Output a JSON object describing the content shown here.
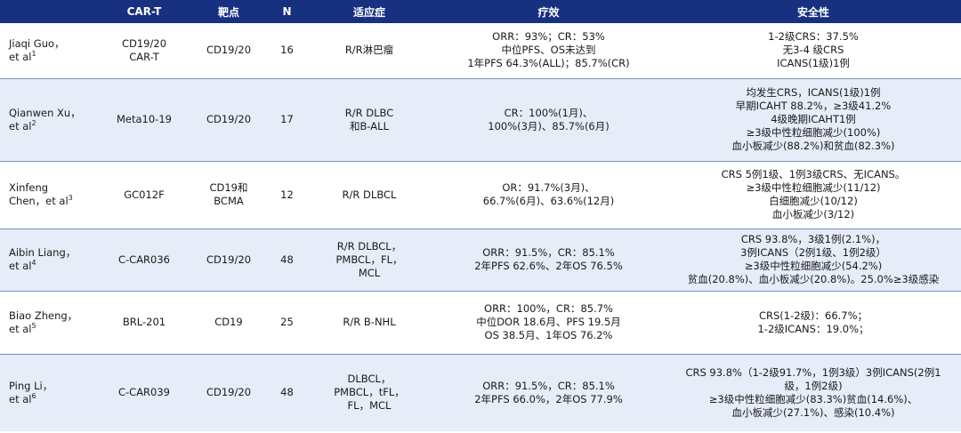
{
  "headers": [
    "",
    "CAR-T",
    "靶点",
    "N",
    "适应症",
    "疗效",
    "安全性"
  ],
  "rows": [
    {
      "author": "Jiaqi Guo，\net al",
      "ref": "1",
      "cart": "CD19/20\nCAR-T",
      "target": "CD19/20",
      "n": "16",
      "indication": "R/R淋巴瘤",
      "efficacy": "ORR：93%；CR：53%\n中位PFS、OS未达到\n1年PFS 64.3%(ALL)；85.7%(CR)",
      "safety": "1-2级CRS：37.5%\n无3-4 级CRS\nICANS(1级)1例"
    },
    {
      "author": "Qianwen Xu，\net al",
      "ref": "2",
      "cart": "Meta10-19",
      "target": "CD19/20",
      "n": "17",
      "indication": "R/R DLBC\n和B-ALL",
      "efficacy": "CR：100%(1月)、\n100%(3月)、85.7%(6月)",
      "safety": "均发生CRS，ICANS(1级)1例\n早期ICAHT 88.2%，≥3级41.2%\n4级晚期ICAHT1例\n≥3级中性粒细胞减少(100%)\n血小板减少(88.2%)和贫血(82.3%)"
    },
    {
      "author": "Xinfeng\nChen，et al",
      "ref": "3",
      "cart": "GC012F",
      "target": "CD19和\nBCMA",
      "n": "12",
      "indication": "R/R DLBCL",
      "efficacy": "OR：91.7%(3月)、\n66.7%(6月)、63.6%(12月)",
      "safety": "CRS 5例1级、1例3级CRS、无ICANS。\n≥3级中性粒细胞减少(11/12)\n白细胞减少(10/12)\n血小板减少(3/12)"
    },
    {
      "author": "Aibin Liang，\net al",
      "ref": "4",
      "cart": "C-CAR036",
      "target": "CD19/20",
      "n": "48",
      "indication": "R/R DLBCL，\nPMBCL，FL，\nMCL",
      "efficacy": "ORR：91.5%，CR：85.1%\n2年PFS 62.6%、2年OS 76.5%",
      "safety": "CRS 93.8%，3级1例(2.1%)，\n3例ICANS（2例1级、1例2级）\n≥3级中性粒细胞减少(54.2%)\n贫血(20.8%)、血小板减少(20.8%)。25.0%≥3级感染"
    },
    {
      "author": "Biao Zheng，\net al",
      "ref": "5",
      "cart": "BRL-201",
      "target": "CD19",
      "n": "25",
      "indication": "R/R B-NHL",
      "efficacy": "ORR：100%，CR：85.7%\n中位DOR 18.6月、PFS 19.5月\nOS 38.5月、1年OS 76.2%",
      "safety": "CRS(1-2级)：66.7%；\n1-2级ICANS：19.0%；"
    },
    {
      "author": "Ping Li，\net al",
      "ref": "6",
      "cart": "C-CAR039",
      "target": "CD19/20",
      "n": "48",
      "indication": "DLBCL，\nPMBCL，tFL，\nFL，MCL",
      "efficacy": "ORR：91.5%，CR：85.1%\n2年PFS 66.0%，2年OS 77.9%",
      "safety": "CRS 93.8%（1-2级91.7%，1例3级）3例ICANS(2例1\n级，1例2级)\n≥3级中性粒细胞减少(83.3%)贫血(14.6%)、\n血小板减少(27.1%)、感染(10.4%)"
    }
  ]
}
